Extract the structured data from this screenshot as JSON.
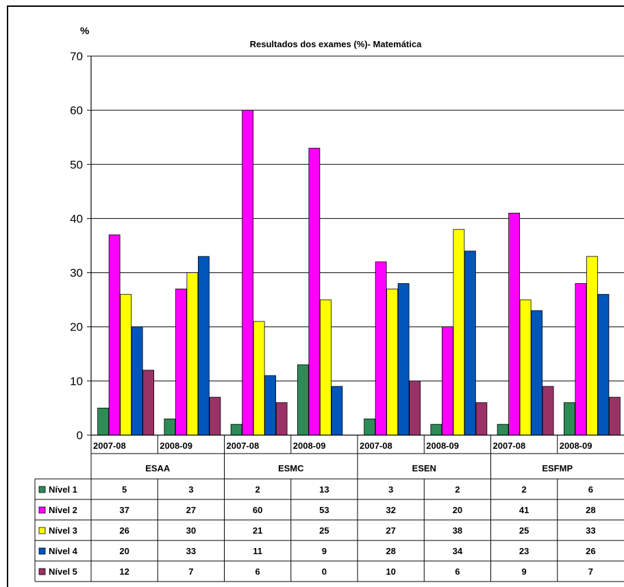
{
  "chart_data": {
    "type": "bar",
    "title": "Resultados dos exames (%)- Matemática",
    "ylabel": "%",
    "ylim": [
      0,
      70
    ],
    "yticks": [
      0,
      10,
      20,
      30,
      40,
      50,
      60,
      70
    ],
    "grid": true,
    "legend": "table-below",
    "groups": [
      {
        "name": "ESAA",
        "years": [
          "2007-08",
          "2008-09"
        ]
      },
      {
        "name": "ESMC",
        "years": [
          "2007-08",
          "2008-09"
        ]
      },
      {
        "name": "ESEN",
        "years": [
          "2007-08",
          "2008-09"
        ]
      },
      {
        "name": "ESFMP",
        "years": [
          "2007-08",
          "2008-09"
        ]
      }
    ],
    "categories": [
      "2007-08",
      "2008-09",
      "2007-08",
      "2008-09",
      "2007-08",
      "2008-09",
      "2007-08",
      "2008-09"
    ],
    "series": [
      {
        "name": "Nível 1",
        "color": "#2e8b57",
        "values": [
          5,
          3,
          2,
          13,
          3,
          2,
          2,
          6
        ]
      },
      {
        "name": "Nível 2",
        "color": "#ff00ff",
        "values": [
          37,
          27,
          60,
          53,
          32,
          20,
          41,
          28
        ]
      },
      {
        "name": "Nível 3",
        "color": "#ffff00",
        "values": [
          26,
          30,
          21,
          25,
          27,
          38,
          25,
          33
        ]
      },
      {
        "name": "Nível 4",
        "color": "#0055bb",
        "values": [
          20,
          33,
          11,
          9,
          28,
          34,
          23,
          26
        ]
      },
      {
        "name": "Nível 5",
        "color": "#993366",
        "values": [
          12,
          7,
          6,
          0,
          10,
          6,
          9,
          7
        ]
      }
    ]
  }
}
